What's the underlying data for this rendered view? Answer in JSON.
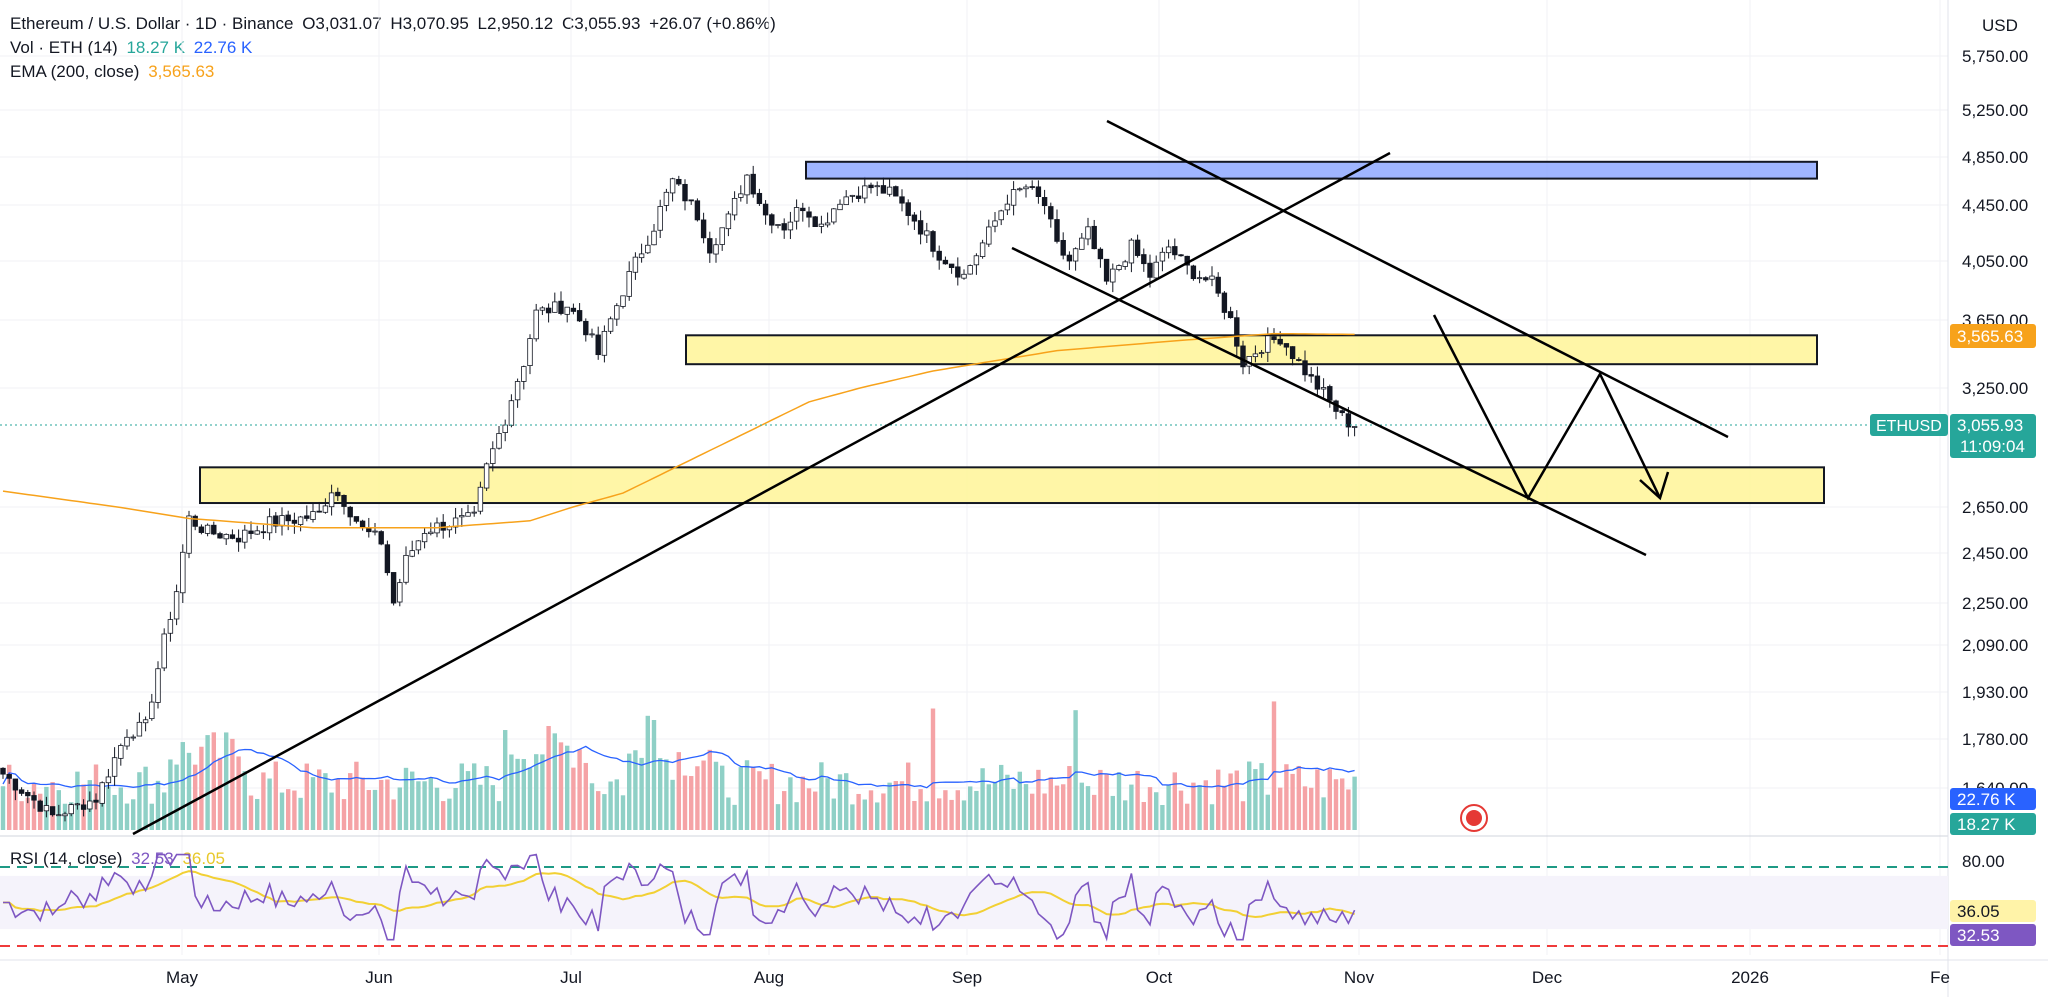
{
  "header": {
    "symbol_line": "Ethereum / U.S. Dollar · 1D · Binance",
    "open_label": "O",
    "open": "3,031.07",
    "high_label": "H",
    "high": "3,070.95",
    "low_label": "L",
    "low": "2,950.12",
    "close_label": "C",
    "close": "3,055.93",
    "change": "+26.07 (+0.86%)",
    "vol_label": "Vol · ETH (14)",
    "vol_value": "18.27 K",
    "vol_ma": "22.76 K",
    "ema_label": "EMA (200, close)",
    "ema_value": "3,565.63"
  },
  "rsi": {
    "label": "RSI (14, close)",
    "value": "32.53",
    "ma": "36.05"
  },
  "colors": {
    "up": "#26a69a",
    "down": "#ef5350",
    "vol_up": "#8fd0c6",
    "vol_down": "#f5a3a6",
    "ema": "#f7a21b",
    "vol_ma": "#2962ff",
    "rsi": "#7e57c2",
    "rsi_ma": "#f2d034",
    "yellow_zone": "#fff59d",
    "blue_zone": "#8ea8ff",
    "price_tag": "#26a69a",
    "ob": "#1e9a85",
    "os": "#ef3b3b"
  },
  "chart_data": {
    "type": "candlestick",
    "currency": "USD",
    "x_ticks": [
      "May",
      "Jun",
      "Jul",
      "Aug",
      "Sep",
      "Oct",
      "Nov",
      "Dec",
      "2026",
      "Fe"
    ],
    "y_ticks": [
      "5,750.00",
      "5,250.00",
      "4,850.00",
      "4,450.00",
      "4,050.00",
      "3,650.00",
      "3,250.00",
      "2,650.00",
      "2,450.00",
      "2,250.00",
      "2,090.00",
      "1,930.00",
      "1,780.00",
      "1,640.00"
    ],
    "last_price": {
      "label": "ETHUSD",
      "value": "3,055.93",
      "countdown": "11:09:04"
    },
    "ema_tag": "3,565.63",
    "vol_tags": [
      "22.76 K",
      "18.27 K"
    ],
    "rsi_axis": [
      "80.00"
    ],
    "rsi_tags": [
      "36.05",
      "32.53"
    ],
    "zones": [
      {
        "color": "blue",
        "from": 4670,
        "to": 4810
      },
      {
        "color": "yellow",
        "from": 3390,
        "to": 3560
      },
      {
        "color": "yellow",
        "from": 2670,
        "to": 2850
      }
    ],
    "start_date": "2025-04-09",
    "candles_ohlc_start": [
      [
        1640,
        1700,
        1600,
        1660
      ],
      [
        1660,
        1680,
        1590,
        1610
      ],
      [
        1610,
        1650,
        1570,
        1600
      ],
      [
        1600,
        1700,
        1590,
        1680
      ],
      [
        1680,
        1710,
        1640,
        1650
      ],
      [
        1650,
        1700,
        1620,
        1690
      ],
      [
        1690,
        1700,
        1600,
        1620
      ],
      [
        1620,
        1660,
        1590,
        1640
      ],
      [
        1640,
        1680,
        1620,
        1660
      ],
      [
        1660,
        1700,
        1640,
        1680
      ]
    ]
  }
}
